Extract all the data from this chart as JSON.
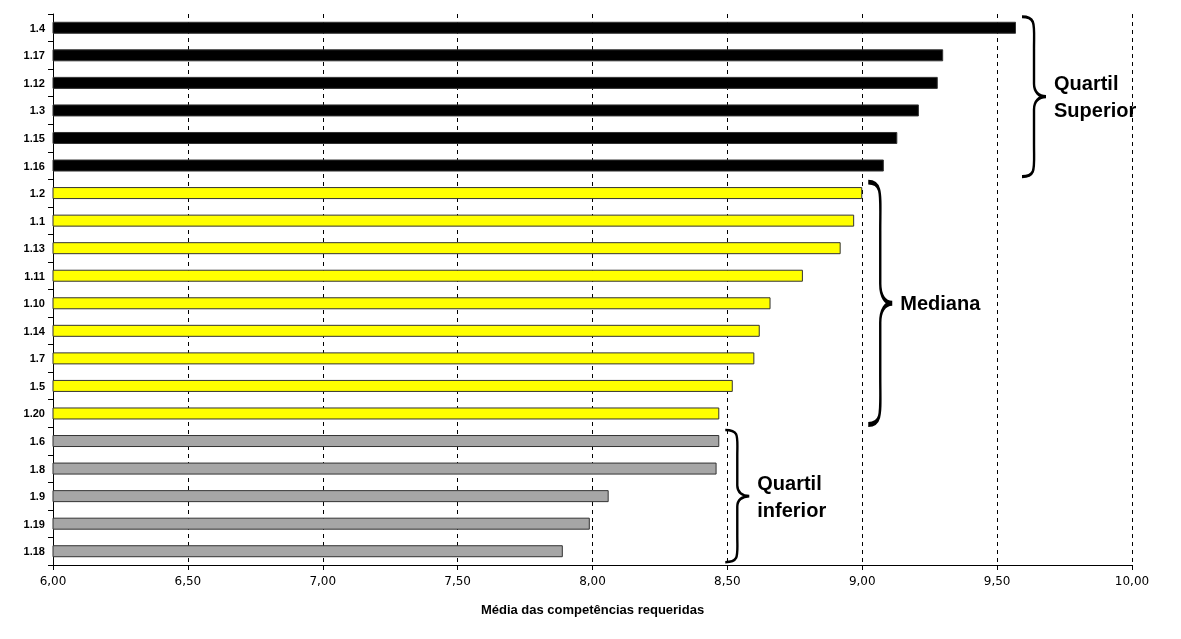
{
  "chart_data": {
    "type": "bar",
    "orientation": "horizontal",
    "xlabel": "Média das competências requeridas",
    "categories": [
      "1.4",
      "1.17",
      "1.12",
      "1.3",
      "1.15",
      "1.16",
      "1.2",
      "1.1",
      "1.13",
      "1.11",
      "1.10",
      "1.14",
      "1.7",
      "1.5",
      "1.20",
      "1.6",
      "1.8",
      "1.9",
      "1.19",
      "1.18"
    ],
    "values": [
      9.57,
      9.3,
      9.28,
      9.21,
      9.13,
      9.08,
      9.0,
      8.97,
      8.92,
      8.78,
      8.66,
      8.62,
      8.6,
      8.52,
      8.47,
      8.47,
      8.46,
      8.06,
      7.99,
      7.89
    ],
    "colors": [
      "#000000",
      "#000000",
      "#000000",
      "#000000",
      "#000000",
      "#000000",
      "#ffff00",
      "#ffff00",
      "#ffff00",
      "#ffff00",
      "#ffff00",
      "#ffff00",
      "#ffff00",
      "#ffff00",
      "#ffff00",
      "#a6a6a6",
      "#a6a6a6",
      "#a6a6a6",
      "#a6a6a6",
      "#a6a6a6"
    ],
    "xlim": [
      6,
      10
    ],
    "xticks": [
      {
        "value": 6,
        "label": "6,00"
      },
      {
        "value": 6.5,
        "label": "6,50"
      },
      {
        "value": 7,
        "label": "7,00"
      },
      {
        "value": 7.5,
        "label": "7,50"
      },
      {
        "value": 8,
        "label": "8,00"
      },
      {
        "value": 8.5,
        "label": "8,50"
      },
      {
        "value": 9,
        "label": "9,00"
      },
      {
        "value": 9.5,
        "label": "9,50"
      },
      {
        "value": 10,
        "label": "10,00"
      }
    ],
    "grid": "x",
    "annotations": [
      "Quartil\nSuperior",
      "Mediana",
      "Quartil\ninferior"
    ]
  }
}
